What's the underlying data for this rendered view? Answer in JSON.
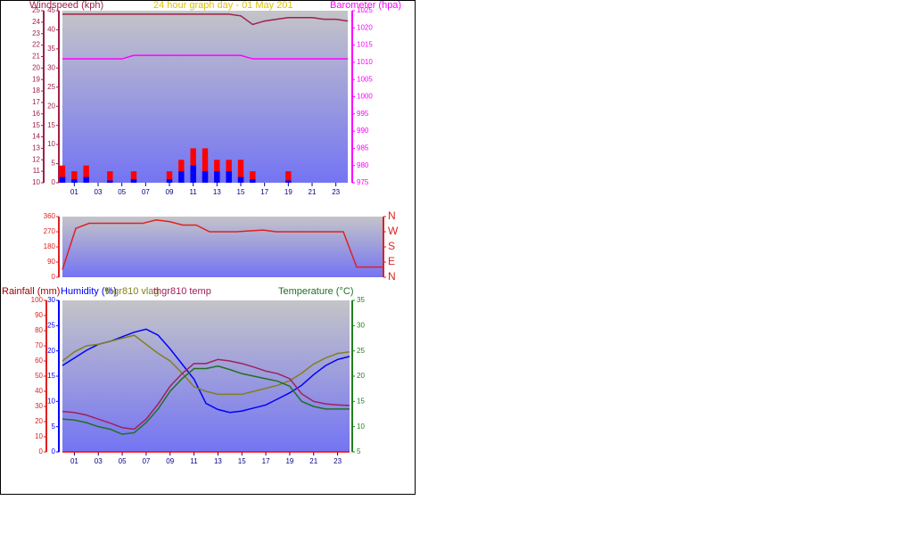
{
  "chart_data": [
    {
      "type": "combo",
      "title": "24 hour graph day - 01 May 201",
      "ylabel": "Windspeed (kph)",
      "y2label": "Barometer (hpa)",
      "x": [
        0,
        1,
        2,
        3,
        4,
        5,
        6,
        7,
        8,
        9,
        10,
        11,
        12,
        13,
        14,
        15,
        16,
        17,
        18,
        19,
        20,
        21,
        22,
        23,
        24
      ],
      "xlim": [
        0,
        24
      ],
      "xticks": [
        {
          "value": 1,
          "label": "01"
        },
        {
          "value": 3,
          "label": "03"
        },
        {
          "value": 5,
          "label": "05"
        },
        {
          "value": 7,
          "label": "07"
        },
        {
          "value": 9,
          "label": "09"
        },
        {
          "value": 11,
          "label": "11"
        },
        {
          "value": 13,
          "label": "13"
        },
        {
          "value": 15,
          "label": "15"
        },
        {
          "value": 17,
          "label": "17"
        },
        {
          "value": 19,
          "label": "19"
        },
        {
          "value": 21,
          "label": "21"
        },
        {
          "value": 23,
          "label": "23"
        }
      ],
      "ylim": [
        10,
        25
      ],
      "yticks": [
        10,
        11,
        12,
        13,
        14,
        15,
        16,
        17,
        18,
        19,
        20,
        21,
        22,
        23,
        24,
        25
      ],
      "y3lim": [
        0,
        45
      ],
      "y3ticks": [
        0,
        5,
        10,
        15,
        20,
        25,
        30,
        35,
        40,
        45
      ],
      "y2lim": [
        975,
        1025
      ],
      "y2ticks": [
        975,
        980,
        985,
        990,
        995,
        1000,
        1005,
        1010,
        1015,
        1020,
        1025
      ],
      "series": [
        {
          "kind": "bar",
          "color": "#ff0000",
          "values": [
            11.5,
            11,
            11.5,
            10,
            11,
            10,
            11,
            10,
            10,
            11,
            12,
            13,
            13,
            12,
            12,
            12,
            11,
            10,
            10,
            11,
            10,
            10,
            10,
            10,
            10
          ]
        },
        {
          "kind": "bar",
          "color": "#0000ff",
          "values": [
            10.5,
            10.3,
            10.5,
            10,
            10.2,
            10,
            10.3,
            10,
            10,
            10.3,
            11,
            11.5,
            11,
            11,
            11,
            10.5,
            10.3,
            10,
            10,
            10.2,
            10,
            10,
            10,
            10,
            10
          ]
        },
        {
          "kind": "line",
          "axis": "y2",
          "color": "#a0204a",
          "values": [
            1024,
            1024,
            1024,
            1024,
            1024,
            1024,
            1024,
            1024,
            1024,
            1024,
            1024,
            1024,
            1024,
            1024,
            1024,
            1023.5,
            1021,
            1022,
            1022.5,
            1023,
            1023,
            1023,
            1022.5,
            1022.5,
            1022
          ]
        },
        {
          "kind": "line",
          "axis": "y2",
          "color": "#ff00ff",
          "values": [
            1011,
            1011,
            1011,
            1011,
            1011,
            1011,
            1012,
            1012,
            1012,
            1012,
            1012,
            1012,
            1012,
            1012,
            1012,
            1012,
            1011,
            1011,
            1011,
            1011,
            1011,
            1011,
            1011,
            1011,
            1011
          ]
        }
      ]
    },
    {
      "type": "combo",
      "x": [
        0,
        1,
        2,
        3,
        4,
        5,
        6,
        7,
        8,
        9,
        10,
        11,
        12,
        13,
        14,
        15,
        16,
        17,
        18,
        19,
        20,
        21,
        22,
        23,
        24
      ],
      "xlim": [
        0,
        24
      ],
      "ylim": [
        0,
        360
      ],
      "yticks": [
        0,
        90,
        180,
        270,
        360
      ],
      "y2lim": [
        0,
        360
      ],
      "y2ticks": [
        {
          "value": 360,
          "label": "N"
        },
        {
          "value": 270,
          "label": "W"
        },
        {
          "value": 180,
          "label": "S"
        },
        {
          "value": 90,
          "label": "E"
        },
        {
          "value": 0,
          "label": "N"
        }
      ],
      "series": [
        {
          "kind": "line",
          "color": "#e02020",
          "values": [
            45,
            290,
            320,
            320,
            320,
            320,
            320,
            340,
            330,
            310,
            310,
            270,
            270,
            270,
            275,
            280,
            270,
            270,
            270,
            270,
            270,
            270,
            60,
            60,
            60
          ]
        }
      ]
    },
    {
      "type": "combo",
      "ylabel": "Rainfall (mm)",
      "y2label": "Temperature (°C)",
      "x": [
        0,
        1,
        2,
        3,
        4,
        5,
        6,
        7,
        8,
        9,
        10,
        11,
        12,
        13,
        14,
        15,
        16,
        17,
        18,
        19,
        20,
        21,
        22,
        23,
        24
      ],
      "xlim": [
        0,
        24
      ],
      "xticks": [
        {
          "value": 1,
          "label": "01"
        },
        {
          "value": 3,
          "label": "03"
        },
        {
          "value": 5,
          "label": "05"
        },
        {
          "value": 7,
          "label": "07"
        },
        {
          "value": 9,
          "label": "09"
        },
        {
          "value": 11,
          "label": "11"
        },
        {
          "value": 13,
          "label": "13"
        },
        {
          "value": 15,
          "label": "15"
        },
        {
          "value": 17,
          "label": "17"
        },
        {
          "value": 19,
          "label": "19"
        },
        {
          "value": 21,
          "label": "21"
        },
        {
          "value": 23,
          "label": "23"
        }
      ],
      "ylim": [
        0,
        100
      ],
      "yticks": [
        0,
        10,
        20,
        30,
        40,
        50,
        60,
        70,
        80,
        90,
        100
      ],
      "y3lim": [
        0,
        30
      ],
      "y3ticks": [
        0,
        5,
        10,
        15,
        20,
        25,
        30
      ],
      "y2lim": [
        5,
        35
      ],
      "y2ticks": [
        5,
        10,
        15,
        20,
        25,
        30,
        35
      ],
      "series": [
        {
          "kind": "line",
          "axis": "y3",
          "color": "#ff0000",
          "values": [
            0,
            0,
            0,
            0,
            0,
            0,
            0,
            0,
            0,
            0,
            0,
            0,
            0,
            0,
            0,
            0,
            0,
            0,
            0,
            0,
            0,
            0,
            0,
            0,
            0
          ]
        },
        {
          "kind": "line",
          "name": "Humidity (%)",
          "color": "#0000ff",
          "values": [
            57,
            62,
            67,
            71,
            73,
            76,
            79,
            81,
            77,
            68,
            58,
            48,
            32,
            28,
            26,
            27,
            29,
            31,
            35,
            39,
            44,
            51,
            57,
            61,
            63
          ]
        },
        {
          "kind": "line",
          "name": "thgr810 vlag",
          "color": "#808020",
          "values": [
            60,
            66,
            70,
            71,
            73,
            75,
            77,
            71,
            65,
            60,
            52,
            43,
            40,
            38,
            38,
            38,
            40,
            42,
            44,
            47,
            52,
            58,
            62,
            65,
            66
          ]
        },
        {
          "kind": "line",
          "name": "thgr810 temp",
          "axis": "y2",
          "color": "#a0205a",
          "values": [
            13,
            12.8,
            12.3,
            11.5,
            10.7,
            9.8,
            9.5,
            11.5,
            14.5,
            18,
            20.5,
            22.5,
            22.5,
            23.3,
            23,
            22.5,
            21.8,
            21,
            20.5,
            19.5,
            16.5,
            15,
            14.5,
            14.3,
            14.2
          ]
        },
        {
          "kind": "line",
          "name": "Temperature (°C)",
          "axis": "y2",
          "color": "#207020",
          "values": [
            11.5,
            11.3,
            10.8,
            10,
            9.5,
            8.5,
            8.8,
            10.8,
            13.5,
            17,
            19.5,
            21.5,
            21.5,
            22,
            21.3,
            20.5,
            20,
            19.5,
            19,
            18,
            15,
            14,
            13.5,
            13.5,
            13.5
          ]
        }
      ]
    }
  ]
}
